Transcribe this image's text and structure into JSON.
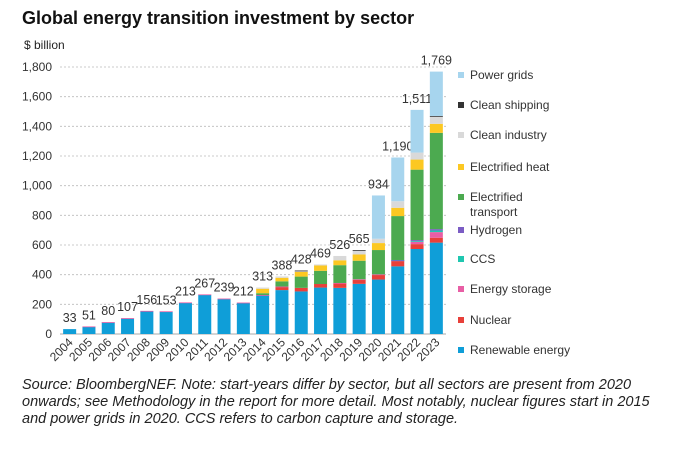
{
  "chart_data": {
    "type": "bar",
    "stacked": true,
    "title": "Global energy transition investment by sector",
    "ylabel": "$ billion",
    "xlabel": "",
    "ylim": [
      0,
      1800
    ],
    "yticks": [
      0,
      200,
      400,
      600,
      800,
      1000,
      1200,
      1400,
      1600,
      1800
    ],
    "ytick_labels": [
      "0",
      "200",
      "400",
      "600",
      "800",
      "1,000",
      "1,200",
      "1,400",
      "1,600",
      "1,800"
    ],
    "grid": "horizontal dashed",
    "legend_position": "right",
    "categories": [
      "2004",
      "2005",
      "2006",
      "2007",
      "2008",
      "2009",
      "2010",
      "2011",
      "2012",
      "2013",
      "2014",
      "2015",
      "2016",
      "2017",
      "2018",
      "2019",
      "2020",
      "2021",
      "2022",
      "2023"
    ],
    "totals": [
      33,
      51,
      80,
      107,
      156,
      153,
      213,
      267,
      239,
      212,
      313,
      388,
      428,
      469,
      526,
      565,
      934,
      1190,
      1511,
      1769
    ],
    "total_labels": [
      "33",
      "51",
      "80",
      "107",
      "156",
      "153",
      "213",
      "267",
      "239",
      "212",
      "313",
      "388",
      "428",
      "469",
      "526",
      "565",
      "934",
      "1,190",
      "1,511",
      "1,769"
    ],
    "series": [
      {
        "name": "Renewable energy",
        "color": "#0f9ed8",
        "values": [
          33,
          50,
          78,
          105,
          154,
          151,
          211,
          265,
          237,
          210,
          261,
          296,
          287,
          313,
          311,
          338,
          367,
          456,
          573,
          616
        ]
      },
      {
        "name": "Nuclear",
        "color": "#e8403a",
        "values": [
          0,
          0,
          0,
          0,
          0,
          0,
          0,
          0,
          0,
          0,
          0,
          22,
          24,
          24,
          31,
          29,
          31,
          36,
          33,
          33
        ]
      },
      {
        "name": "Energy storage",
        "color": "#e85ea5",
        "values": [
          0,
          1,
          2,
          2,
          2,
          2,
          2,
          2,
          2,
          2,
          2,
          2,
          0,
          0,
          2,
          2,
          4,
          4,
          16,
          38
        ]
      },
      {
        "name": "CCS",
        "color": "#1fc7b0",
        "values": [
          0,
          0,
          0,
          0,
          0,
          0,
          0,
          0,
          0,
          0,
          0,
          0,
          0,
          0,
          0,
          0,
          0,
          1,
          4,
          11
        ]
      },
      {
        "name": "Hydrogen",
        "color": "#7b5cc4",
        "values": [
          0,
          0,
          0,
          0,
          0,
          0,
          0,
          0,
          0,
          0,
          0,
          0,
          0,
          0,
          0,
          0,
          0,
          2,
          7,
          9
        ]
      },
      {
        "name": "Electrified transport",
        "color": "#4caa50",
        "values": [
          0,
          0,
          0,
          0,
          0,
          0,
          0,
          0,
          0,
          0,
          12,
          35,
          76,
          89,
          120,
          125,
          164,
          296,
          475,
          649
        ]
      },
      {
        "name": "Electrified heat",
        "color": "#fcc822",
        "values": [
          0,
          0,
          0,
          0,
          0,
          0,
          0,
          0,
          0,
          0,
          30,
          24,
          33,
          36,
          33,
          42,
          47,
          56,
          68,
          61
        ]
      },
      {
        "name": "Clean industry",
        "color": "#d9d9d9",
        "values": [
          0,
          0,
          0,
          0,
          0,
          0,
          0,
          0,
          0,
          0,
          8,
          9,
          4,
          7,
          29,
          25,
          29,
          44,
          47,
          51
        ]
      },
      {
        "name": "Clean shipping",
        "color": "#333333",
        "values": [
          0,
          0,
          0,
          0,
          0,
          0,
          0,
          0,
          0,
          0,
          0,
          0,
          4,
          0,
          0,
          4,
          0,
          0,
          0,
          2
        ]
      },
      {
        "name": "Power grids",
        "color": "#a7d5ee",
        "values": [
          0,
          0,
          0,
          0,
          0,
          0,
          0,
          0,
          0,
          0,
          0,
          0,
          0,
          0,
          0,
          0,
          292,
          295,
          288,
          299
        ]
      }
    ],
    "legend": [
      {
        "label": "Power grids",
        "color": "#a7d5ee"
      },
      {
        "label": "Clean shipping",
        "color": "#333333"
      },
      {
        "label": "Clean industry",
        "color": "#d9d9d9"
      },
      {
        "label": "Electrified heat",
        "color": "#fcc822"
      },
      {
        "label": "Electrified transport",
        "color": "#4caa50"
      },
      {
        "label": "Hydrogen",
        "color": "#7b5cc4"
      },
      {
        "label": "CCS",
        "color": "#1fc7b0"
      },
      {
        "label": "Energy storage",
        "color": "#e85ea5"
      },
      {
        "label": "Nuclear",
        "color": "#e8403a"
      },
      {
        "label": "Renewable energy",
        "color": "#0f9ed8"
      }
    ]
  },
  "source_note": "Source: BloombergNEF. Note: start-years differ by sector, but all sectors are present from 2020 onwards; see Methodology in the report for more detail. Most notably, nuclear figures start in 2015 and power grids in 2020. CCS refers to carbon capture and storage."
}
